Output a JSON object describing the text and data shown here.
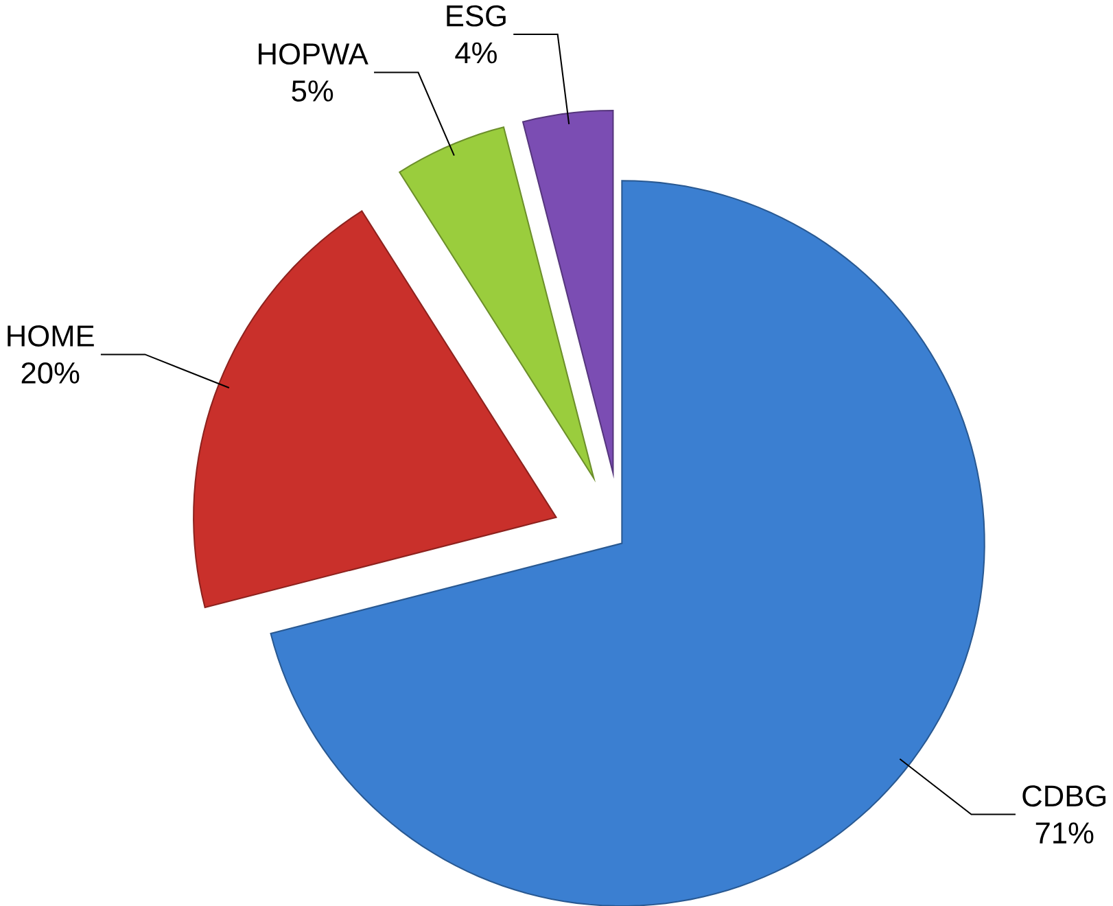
{
  "chart_data": {
    "type": "pie",
    "categories": [
      "CDBG",
      "HOME",
      "HOPWA",
      "ESG"
    ],
    "values": [
      71,
      20,
      5,
      4
    ],
    "value_labels": [
      "71%",
      "20%",
      "5%",
      "4%"
    ],
    "colors": [
      "#3b7fd1",
      "#c9302b",
      "#9acd3d",
      "#7b4db3"
    ]
  }
}
